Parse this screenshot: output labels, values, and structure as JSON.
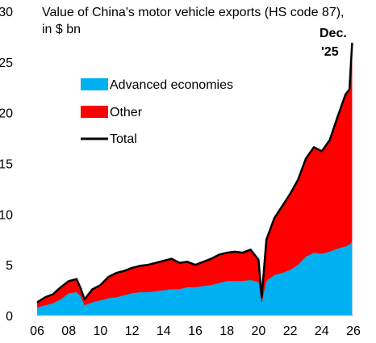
{
  "chart_data": {
    "type": "area",
    "title": "Value of China's motor vehicle exports (HS code 87),",
    "subtitle": "in $ bn",
    "ylim": [
      0,
      30
    ],
    "y_ticks": [
      "0",
      "5",
      "10",
      "15",
      "20",
      "25",
      "30"
    ],
    "x_ticks": [
      "06",
      "08",
      "10",
      "12",
      "14",
      "16",
      "18",
      "20",
      "22",
      "24",
      "26"
    ],
    "legend_position": "upper-left",
    "annotation": {
      "line1": "Dec.",
      "line2": "'25",
      "x": 2025.92,
      "y": 26.9
    },
    "colors": {
      "advanced": "#00b0f0",
      "other": "#ff0000",
      "total": "#000000",
      "axis": "#bfbfbf"
    },
    "series": [
      {
        "name": "Advanced economies",
        "role": "advanced"
      },
      {
        "name": "Other",
        "role": "other"
      },
      {
        "name": "Total",
        "role": "total"
      }
    ],
    "x": [
      2006.0,
      2006.5,
      2007.0,
      2007.5,
      2008.0,
      2008.5,
      2008.75,
      2009.0,
      2009.5,
      2010.0,
      2010.5,
      2011.0,
      2011.5,
      2012.0,
      2012.5,
      2013.0,
      2013.5,
      2014.0,
      2014.5,
      2015.0,
      2015.5,
      2016.0,
      2016.5,
      2017.0,
      2017.5,
      2018.0,
      2018.5,
      2019.0,
      2019.5,
      2020.0,
      2020.2,
      2020.5,
      2021.0,
      2021.5,
      2022.0,
      2022.5,
      2023.0,
      2023.5,
      2024.0,
      2024.5,
      2025.0,
      2025.5,
      2025.75,
      2025.92
    ],
    "advanced": [
      0.8,
      1.0,
      1.2,
      1.6,
      2.2,
      2.3,
      1.9,
      1.0,
      1.3,
      1.5,
      1.7,
      1.8,
      2.0,
      2.2,
      2.3,
      2.3,
      2.4,
      2.5,
      2.6,
      2.6,
      2.8,
      2.8,
      2.9,
      3.0,
      3.2,
      3.4,
      3.4,
      3.4,
      3.5,
      3.3,
      1.2,
      3.4,
      4.0,
      4.2,
      4.5,
      5.0,
      5.8,
      6.2,
      6.1,
      6.3,
      6.6,
      6.8,
      7.0,
      7.3
    ],
    "total": [
      1.3,
      1.8,
      2.1,
      2.8,
      3.4,
      3.6,
      2.7,
      1.6,
      2.6,
      3.0,
      3.8,
      4.2,
      4.4,
      4.7,
      4.9,
      5.0,
      5.2,
      5.4,
      5.6,
      5.2,
      5.3,
      5.0,
      5.3,
      5.6,
      6.0,
      6.2,
      6.3,
      6.2,
      6.5,
      5.5,
      1.8,
      7.5,
      9.6,
      10.8,
      12.0,
      13.4,
      15.5,
      16.6,
      16.2,
      17.3,
      19.6,
      21.8,
      22.3,
      26.9
    ]
  }
}
